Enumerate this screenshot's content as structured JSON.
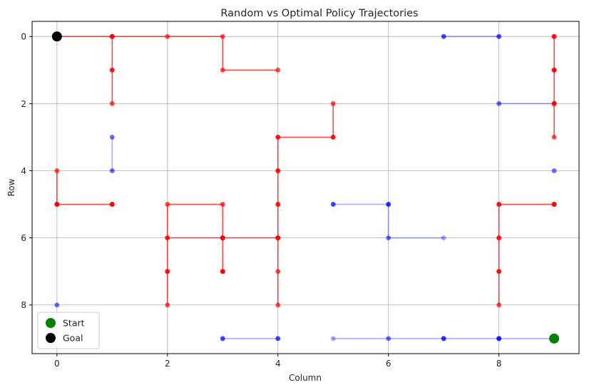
{
  "chart_data": {
    "type": "line",
    "title": "Random vs Optimal Policy Trajectories",
    "xlabel": "Column",
    "ylabel": "Row",
    "xlim": [
      -0.45,
      9.45
    ],
    "ylim": [
      9.45,
      -0.45
    ],
    "y_inverted": true,
    "xticks": [
      0,
      2,
      4,
      6,
      8
    ],
    "yticks": [
      0,
      2,
      4,
      6,
      8
    ],
    "grid": true,
    "legend_position": "lower-left",
    "legend": [
      {
        "label": "Start",
        "color": "#008000",
        "marker": "circle"
      },
      {
        "label": "Goal",
        "color": "#000000",
        "marker": "circle"
      }
    ],
    "start_point": {
      "x": 9,
      "y": 9
    },
    "goal_point": {
      "x": 0,
      "y": 0
    },
    "series": [
      {
        "policy": "random",
        "color": "#0000ff",
        "points": [
          [
            8,
            9
          ],
          [
            7,
            9
          ],
          [
            8,
            9
          ],
          [
            7,
            9
          ],
          [
            6,
            9
          ],
          [
            5,
            9
          ],
          [
            6,
            9
          ],
          [
            7,
            9
          ],
          [
            8,
            9
          ],
          [
            9,
            9
          ],
          [
            8,
            9
          ],
          [
            7,
            9
          ],
          [
            8,
            9
          ]
        ]
      },
      {
        "policy": "random",
        "color": "#0000ff",
        "points": [
          [
            3,
            9
          ],
          [
            4,
            9
          ],
          [
            3,
            9
          ],
          [
            4,
            9
          ],
          [
            3,
            9
          ],
          [
            4,
            9
          ]
        ]
      },
      {
        "policy": "random",
        "color": "#0000ff",
        "points": [
          [
            5,
            5
          ],
          [
            6,
            5
          ],
          [
            5,
            5
          ],
          [
            6,
            5
          ],
          [
            6,
            6
          ],
          [
            7,
            6
          ],
          [
            6,
            6
          ],
          [
            6,
            5
          ],
          [
            5,
            5
          ],
          [
            6,
            5
          ]
        ]
      },
      {
        "policy": "random",
        "color": "#0000ff",
        "points": [
          [
            7,
            0
          ],
          [
            8,
            0
          ],
          [
            7,
            0
          ],
          [
            8,
            0
          ],
          [
            7,
            0
          ],
          [
            8,
            0
          ]
        ]
      },
      {
        "policy": "random",
        "color": "#0000ff",
        "points": [
          [
            8,
            2
          ],
          [
            9,
            2
          ],
          [
            8,
            2
          ],
          [
            9,
            2
          ]
        ]
      },
      {
        "policy": "random",
        "color": "#0000ff",
        "points": [
          [
            1,
            3
          ],
          [
            1,
            4
          ],
          [
            1,
            3
          ],
          [
            1,
            4
          ]
        ]
      },
      {
        "policy": "random",
        "color": "#0000ff",
        "points": [
          [
            9,
            4
          ],
          [
            9,
            4
          ]
        ]
      },
      {
        "policy": "random",
        "color": "#0000ff",
        "points": [
          [
            0,
            8
          ],
          [
            0,
            8
          ]
        ]
      },
      {
        "policy": "optimal",
        "color": "#ff0000",
        "points": [
          [
            9,
            5
          ],
          [
            8,
            5
          ],
          [
            8,
            6
          ],
          [
            8,
            7
          ],
          [
            8,
            8
          ],
          [
            8,
            7
          ],
          [
            8,
            6
          ],
          [
            8,
            5
          ],
          [
            9,
            5
          ],
          [
            9,
            5
          ]
        ]
      },
      {
        "policy": "optimal",
        "color": "#ff0000",
        "points": [
          [
            9,
            3
          ],
          [
            9,
            2
          ],
          [
            9,
            1
          ],
          [
            9,
            0
          ],
          [
            9,
            1
          ],
          [
            9,
            2
          ],
          [
            9,
            1
          ],
          [
            9,
            0
          ],
          [
            9,
            2
          ]
        ]
      },
      {
        "policy": "optimal",
        "color": "#ff0000",
        "points": [
          [
            4,
            8
          ],
          [
            4,
            7
          ],
          [
            4,
            6
          ],
          [
            3,
            6
          ],
          [
            3,
            7
          ],
          [
            3,
            6
          ],
          [
            4,
            6
          ],
          [
            4,
            5
          ],
          [
            4,
            4
          ],
          [
            4,
            3
          ],
          [
            5,
            3
          ],
          [
            5,
            2
          ],
          [
            5,
            3
          ],
          [
            4,
            3
          ],
          [
            4,
            4
          ],
          [
            4,
            5
          ],
          [
            4,
            6
          ],
          [
            3,
            6
          ],
          [
            3,
            5
          ],
          [
            2,
            5
          ],
          [
            2,
            6
          ],
          [
            2,
            7
          ],
          [
            2,
            8
          ],
          [
            2,
            7
          ],
          [
            2,
            6
          ],
          [
            3,
            6
          ],
          [
            3,
            7
          ],
          [
            3,
            6
          ],
          [
            4,
            6
          ],
          [
            3,
            6
          ],
          [
            3,
            7
          ]
        ]
      },
      {
        "policy": "optimal",
        "color": "#ff0000",
        "points": [
          [
            1,
            5
          ],
          [
            0,
            5
          ],
          [
            0,
            4
          ],
          [
            0,
            5
          ],
          [
            1,
            5
          ],
          [
            0,
            5
          ],
          [
            1,
            5
          ]
        ]
      },
      {
        "policy": "optimal",
        "color": "#ff0000",
        "points": [
          [
            4,
            1
          ],
          [
            3,
            1
          ],
          [
            3,
            0
          ],
          [
            2,
            0
          ],
          [
            1,
            0
          ],
          [
            1,
            1
          ],
          [
            1,
            2
          ],
          [
            1,
            1
          ],
          [
            1,
            0
          ],
          [
            0,
            0
          ],
          [
            1,
            0
          ],
          [
            0,
            0
          ]
        ]
      }
    ]
  }
}
